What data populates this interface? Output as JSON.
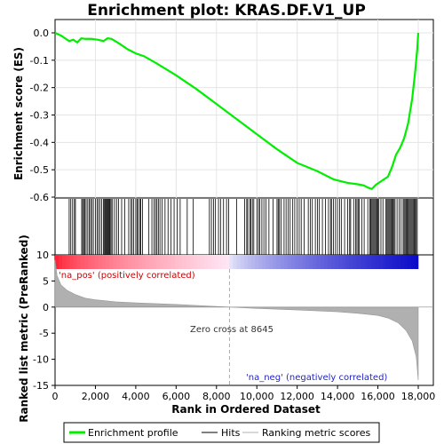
{
  "chart_data": {
    "type": "line",
    "title": "Enrichment plot: KRAS.DF.V1_UP",
    "xlabel": "Rank in Ordered Dataset",
    "ylabel_top": "Enrichment score (ES)",
    "ylabel_bottom": "Ranked list metric (PreRanked)",
    "xlim": [
      0,
      18000
    ],
    "es_ylim": [
      -0.6,
      0.0
    ],
    "metric_ylim": [
      -15,
      10
    ],
    "x_ticks": [
      "0",
      "2,000",
      "4,000",
      "6,000",
      "8,000",
      "10,000",
      "12,000",
      "14,000",
      "16,000",
      "18,000"
    ],
    "x_tick_values": [
      0,
      2000,
      4000,
      6000,
      8000,
      10000,
      12000,
      14000,
      16000,
      18000
    ],
    "es_ticks": [
      "0.0",
      "-0.1",
      "-0.2",
      "-0.3",
      "-0.4",
      "-0.5",
      "-0.6"
    ],
    "es_tick_values": [
      0.0,
      -0.1,
      -0.2,
      -0.3,
      -0.4,
      -0.5,
      -0.6
    ],
    "metric_ticks": [
      "10",
      "5",
      "0",
      "-5",
      "-10",
      "-15"
    ],
    "metric_tick_values": [
      10,
      5,
      0,
      -5,
      -10,
      -15
    ],
    "zero_cross_label": "Zero cross at 8645",
    "zero_cross": 8645,
    "pos_label": "'na_pos' (positively correlated)",
    "neg_label": "'na_neg' (negatively correlated)",
    "legend": {
      "placement": "bottom",
      "entries": [
        "Enrichment profile",
        "Hits",
        "Ranking metric scores"
      ]
    },
    "colors": {
      "profile": "#00ee00",
      "hits": "#000000",
      "metric": "#b0b0b0",
      "pos_text": "#cc0000",
      "neg_text": "#2222cc"
    },
    "series": [
      {
        "name": "Enrichment profile",
        "x": [
          0,
          300,
          700,
          900,
          1100,
          1300,
          1500,
          1800,
          2100,
          2400,
          2600,
          2800,
          3200,
          3600,
          4000,
          4400,
          5000,
          6000,
          7000,
          8000,
          9000,
          10000,
          11000,
          12000,
          13000,
          13800,
          14500,
          15000,
          15300,
          15500,
          15700,
          15900,
          16200,
          16500,
          16700,
          16900,
          17100,
          17300,
          17500,
          17700,
          17850,
          17950,
          18000
        ],
        "y": [
          0.0,
          -0.01,
          -0.03,
          -0.025,
          -0.035,
          -0.02,
          -0.022,
          -0.022,
          -0.025,
          -0.03,
          -0.02,
          -0.022,
          -0.04,
          -0.06,
          -0.075,
          -0.085,
          -0.11,
          -0.155,
          -0.205,
          -0.26,
          -0.315,
          -0.37,
          -0.425,
          -0.475,
          -0.505,
          -0.535,
          -0.548,
          -0.553,
          -0.557,
          -0.565,
          -0.57,
          -0.555,
          -0.54,
          -0.525,
          -0.49,
          -0.445,
          -0.42,
          -0.385,
          -0.33,
          -0.24,
          -0.14,
          -0.06,
          0.0
        ]
      },
      {
        "name": "Ranking metric scores",
        "x": [
          0,
          100,
          300,
          600,
          1000,
          1500,
          2000,
          3000,
          4000,
          6000,
          8645,
          10000,
          12000,
          14000,
          15000,
          16000,
          16500,
          17000,
          17400,
          17700,
          17900,
          18000
        ],
        "y": [
          9.0,
          6.0,
          4.2,
          3.2,
          2.4,
          1.7,
          1.4,
          1.0,
          0.8,
          0.5,
          0.0,
          -0.25,
          -0.55,
          -0.9,
          -1.2,
          -1.6,
          -2.1,
          -3.0,
          -4.5,
          -6.5,
          -9.5,
          -14.0
        ]
      }
    ],
    "hits_ranks": [
      700,
      780,
      870,
      960,
      1010,
      1320,
      1370,
      1420,
      1470,
      1540,
      1620,
      1700,
      1760,
      1820,
      1900,
      2000,
      2080,
      2150,
      2230,
      2310,
      2400,
      2450,
      2490,
      2530,
      2570,
      2610,
      2650,
      2690,
      2730,
      2780,
      2850,
      2950,
      3050,
      3150,
      3300,
      3450,
      3650,
      3750,
      3820,
      3900,
      4000,
      4060,
      4120,
      4200,
      4250,
      4330,
      4650,
      4800,
      4900,
      4980,
      5050,
      5120,
      5200,
      5300,
      5450,
      5600,
      5750,
      5900,
      6050,
      6200,
      6550,
      6850,
      7650,
      7750,
      7850,
      7950,
      8100,
      8200,
      8350,
      8500,
      8600,
      9000,
      9400,
      9500,
      9550,
      9650,
      9700,
      9780,
      9850,
      10000,
      10080,
      10150,
      10250,
      10350,
      10450,
      10600,
      10800,
      11000,
      11060,
      11120,
      11200,
      11350,
      11450,
      11550,
      11650,
      11780,
      11880,
      12000,
      12100,
      12200,
      12350,
      12550,
      12650,
      12750,
      12900,
      13000,
      13100,
      13250,
      13400,
      13550,
      13650,
      13700,
      13800,
      13900,
      14000,
      14100,
      14200,
      14350,
      14500,
      14600,
      14650,
      14800,
      14900,
      14960,
      15020,
      15080,
      15200,
      15320,
      15500,
      15600,
      15650,
      15700,
      15750,
      15800,
      15850,
      15900,
      15950,
      16000,
      16050,
      16150,
      16250,
      16400,
      16450,
      16500,
      16550,
      16600,
      16650,
      16700,
      16750,
      16800,
      16850,
      16950,
      17050,
      17150,
      17250,
      17300,
      17350,
      17400,
      17450,
      17500,
      17550,
      17600,
      17650,
      17700,
      17750,
      17800,
      17850,
      17900,
      17950
    ]
  }
}
